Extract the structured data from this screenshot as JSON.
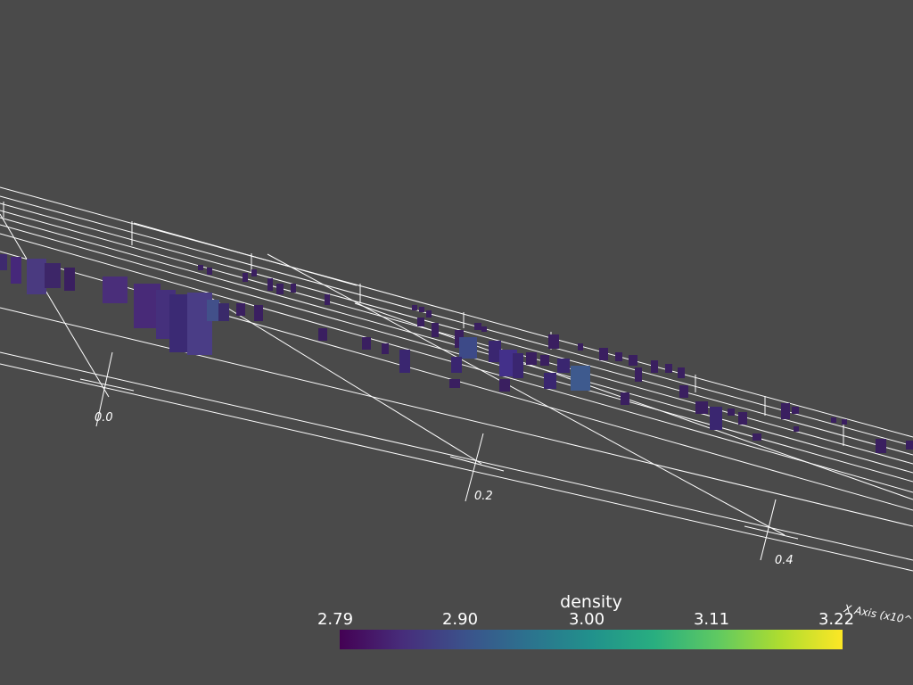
{
  "colors": {
    "background": "#4a4a4a",
    "axes": "#ffffff",
    "colormap": [
      "#440154",
      "#472d7b",
      "#3b528b",
      "#2c728e",
      "#21918c",
      "#28ae80",
      "#5ec962",
      "#addc30",
      "#fde725"
    ]
  },
  "axis": {
    "title": "X Axis (x10^",
    "ticks": [
      "0.0",
      "0.2",
      "0.4"
    ]
  },
  "colorbar": {
    "title": "density",
    "ticks": [
      "2.79",
      "2.90",
      "3.00",
      "3.11",
      "3.22"
    ],
    "range": [
      2.79,
      3.22
    ],
    "colormap": "viridis"
  }
}
